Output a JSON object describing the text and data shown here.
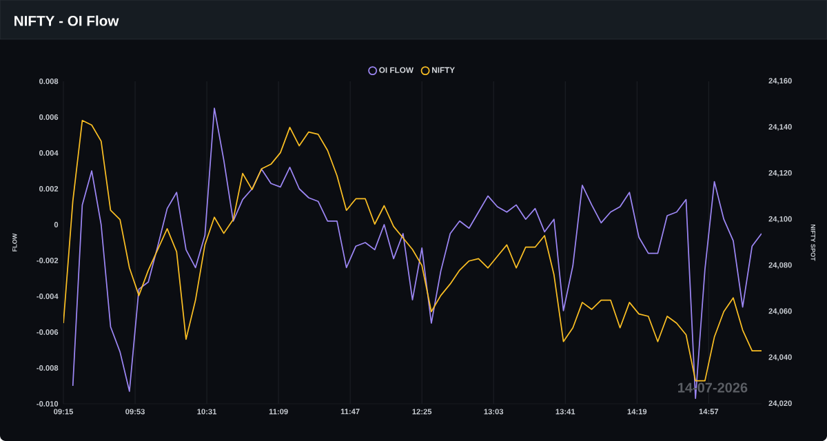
{
  "chart_data": {
    "type": "line",
    "title": "NIFTY - OI Flow",
    "ylabel": "FLOW",
    "y2label": "NIFTY SPOT",
    "annotations": [
      "14-07-2026"
    ],
    "x": [
      9.25,
      9.3333,
      9.4167,
      9.5,
      9.5833,
      9.6667,
      9.75,
      9.8333,
      9.9167,
      10.0,
      10.0833,
      10.1667,
      10.25,
      10.3333,
      10.4167,
      10.5,
      10.5833,
      10.6667,
      10.75,
      10.8333,
      10.9167,
      11.0,
      11.0833,
      11.1667,
      11.25,
      11.3333,
      11.4167,
      11.5,
      11.5833,
      11.6667,
      11.75,
      11.8333,
      11.9167,
      12.0,
      12.0833,
      12.1667,
      12.25,
      12.3333,
      12.4167,
      12.5,
      12.5833,
      12.6667,
      12.75,
      12.8333,
      12.9167,
      13.0,
      13.0833,
      13.1667,
      13.25,
      13.3333,
      13.4167,
      13.5,
      13.5833,
      13.6667,
      13.75,
      13.8333,
      13.9167,
      14.0,
      14.0833,
      14.1667,
      14.25,
      14.3333,
      14.4167,
      14.5,
      14.5833,
      14.6667,
      14.75,
      14.8333,
      14.9167,
      15.0,
      15.0833,
      15.1667,
      15.25,
      15.3333,
      15.4167
    ],
    "series": [
      {
        "name": "OI FLOW",
        "color": "#9d87f5",
        "axis": "y",
        "values": [
          null,
          -0.009,
          0.0011,
          0.003,
          0.0,
          -0.0057,
          -0.0071,
          -0.0093,
          -0.0036,
          -0.0032,
          -0.0012,
          0.0009,
          0.0018,
          -0.0014,
          -0.0024,
          -0.0006,
          0.0065,
          0.0036,
          0.0002,
          0.0014,
          0.002,
          0.0031,
          0.0023,
          0.0021,
          0.0032,
          0.002,
          0.0015,
          0.0013,
          0.0002,
          0.0002,
          -0.0024,
          -0.0012,
          -0.001,
          -0.0014,
          0.0,
          -0.0019,
          -0.0005,
          -0.0042,
          -0.0013,
          -0.0055,
          -0.0026,
          -0.0005,
          0.0002,
          -0.0002,
          0.0007,
          0.0016,
          0.001,
          0.0007,
          0.0011,
          0.0003,
          0.0009,
          -0.0004,
          0.0003,
          -0.0048,
          -0.0023,
          0.0022,
          0.0011,
          0.0001,
          0.0007,
          0.001,
          0.0018,
          -0.0007,
          -0.0016,
          -0.0016,
          0.0005,
          0.0007,
          0.0014,
          -0.0097,
          -0.0025,
          0.0024,
          0.0003,
          -0.0009,
          -0.0046,
          -0.0012,
          -0.0005
        ]
      },
      {
        "name": "NIFTY",
        "color": "#fbbf24",
        "axis": "y2",
        "values": [
          24055,
          24108,
          24143,
          24141,
          24134,
          24104,
          24100,
          24079,
          24067,
          24078,
          24087,
          24096,
          24086,
          24048,
          24065,
          24089,
          24101,
          24094,
          24100,
          24120,
          24113,
          24122,
          24124,
          24129,
          24140,
          24132,
          24138,
          24137,
          24130,
          24119,
          24104,
          24109,
          24109,
          24098,
          24106,
          24097,
          24092,
          24087,
          24080,
          24060,
          24067,
          24072,
          24078,
          24082,
          24083,
          24079,
          24084,
          24089,
          24079,
          24088,
          24088,
          24093,
          24076,
          24047,
          24053,
          24064,
          24061,
          24065,
          24065,
          24053,
          24064,
          24059,
          24058,
          24047,
          24058,
          24055,
          24050,
          24030,
          24030,
          24049,
          24060,
          24066,
          24052,
          24043,
          24043
        ]
      }
    ],
    "xlim": [
      9.25,
      15.4167
    ],
    "xticks": [
      {
        "value": 9.25,
        "label": "09:15"
      },
      {
        "value": 9.8833,
        "label": "09:53"
      },
      {
        "value": 10.5167,
        "label": "10:31"
      },
      {
        "value": 11.15,
        "label": "11:09"
      },
      {
        "value": 11.7833,
        "label": "11:47"
      },
      {
        "value": 12.4167,
        "label": "12:25"
      },
      {
        "value": 13.05,
        "label": "13:03"
      },
      {
        "value": 13.6833,
        "label": "13:41"
      },
      {
        "value": 14.3167,
        "label": "14:19"
      },
      {
        "value": 14.95,
        "label": "14:57"
      }
    ],
    "ylim": [
      -0.01,
      0.008
    ],
    "yticks": [
      {
        "value": -0.01,
        "label": "-0.010"
      },
      -0.008,
      -0.006,
      -0.004,
      -0.002,
      0,
      0.002,
      0.004,
      0.006,
      0.008
    ],
    "y2lim": [
      24020,
      24160
    ],
    "y2ticks": [
      {
        "value": 24020,
        "label": "24,020"
      },
      {
        "value": 24040,
        "label": "24,040"
      },
      {
        "value": 24060,
        "label": "24,060"
      },
      {
        "value": 24080,
        "label": "24,080"
      },
      {
        "value": 24100,
        "label": "24,100"
      },
      {
        "value": 24120,
        "label": "24,120"
      },
      {
        "value": 24140,
        "label": "24,140"
      },
      {
        "value": 24160,
        "label": "24,160"
      }
    ],
    "grid": "x",
    "legend": "top",
    "marker": "none",
    "line_style": "solid"
  }
}
